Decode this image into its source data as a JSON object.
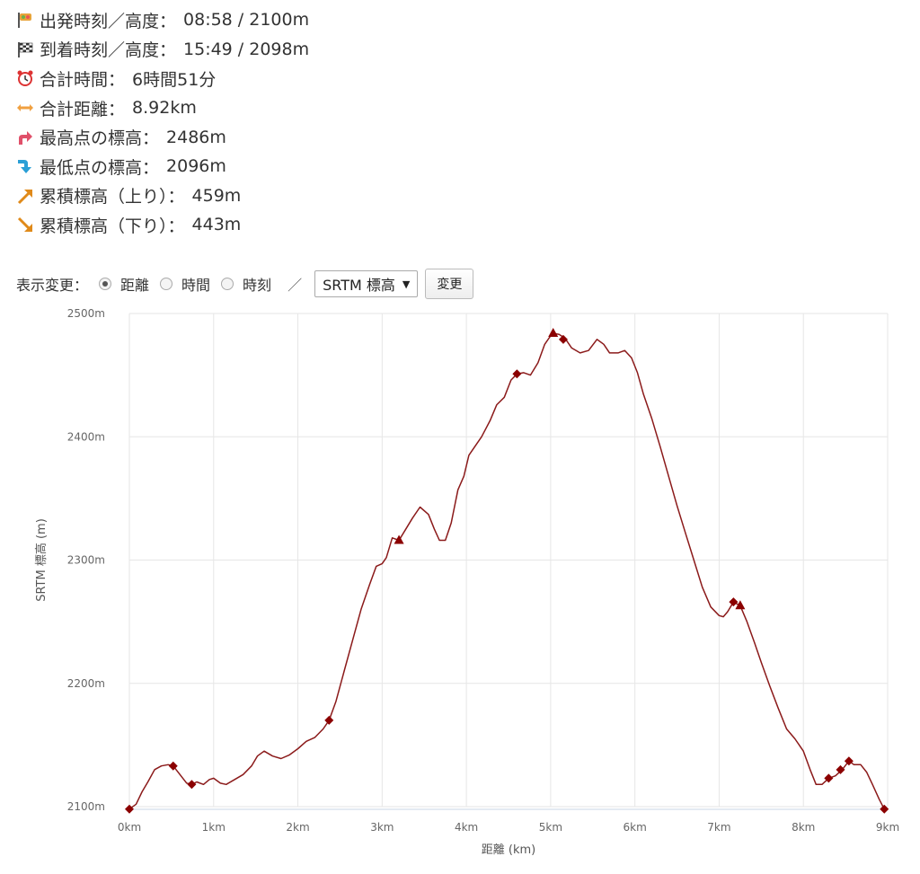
{
  "stats": [
    {
      "icon": "start-flag-icon",
      "label": "出発時刻／高度：",
      "value": "08:58 / 2100m"
    },
    {
      "icon": "finish-flag-icon",
      "label": "到着時刻／高度：",
      "value": "15:49 / 2098m"
    },
    {
      "icon": "alarm-clock-icon",
      "label": "合計時間：",
      "value": "6時間51分"
    },
    {
      "icon": "horizontal-arrow-icon",
      "label": "合計距離：",
      "value": "8.92km"
    },
    {
      "icon": "up-turn-arrow-icon",
      "label": "最高点の標高：",
      "value": "2486m"
    },
    {
      "icon": "down-turn-arrow-icon",
      "label": "最低点の標高：",
      "value": "2096m"
    },
    {
      "icon": "ascent-arrow-icon",
      "label": "累積標高（上り）：",
      "value": "459m"
    },
    {
      "icon": "descent-arrow-icon",
      "label": "累積標高（下り）：",
      "value": "443m"
    }
  ],
  "controls": {
    "label": "表示変更：",
    "options": [
      {
        "label": "距離",
        "checked": true
      },
      {
        "label": "時間",
        "checked": false
      },
      {
        "label": "時刻",
        "checked": false
      }
    ],
    "separator": "／",
    "select_value": "SRTM 標高",
    "button_label": "変更"
  },
  "colors": {
    "line": "#8b1a1a",
    "marker": "#8b0000",
    "grid": "#e6e6e6"
  },
  "chart_data": {
    "type": "line",
    "xlabel": "距離 (km)",
    "ylabel": "SRTM 標高 (m)",
    "xlim": [
      0,
      9
    ],
    "ylim": [
      2100,
      2500
    ],
    "x_ticks": [
      0,
      1,
      2,
      3,
      4,
      5,
      6,
      7,
      8,
      9
    ],
    "x_tick_labels": [
      "0km",
      "1km",
      "2km",
      "3km",
      "4km",
      "5km",
      "6km",
      "7km",
      "8km",
      "9km"
    ],
    "y_ticks": [
      2100,
      2200,
      2300,
      2400,
      2500
    ],
    "y_tick_labels": [
      "2100m",
      "2200m",
      "2300m",
      "2400m",
      "2500m"
    ],
    "grid": true,
    "series": [
      {
        "name": "",
        "points": [
          [
            0.0,
            2098
          ],
          [
            0.08,
            2102
          ],
          [
            0.15,
            2112
          ],
          [
            0.22,
            2120
          ],
          [
            0.3,
            2130
          ],
          [
            0.38,
            2133
          ],
          [
            0.46,
            2134
          ],
          [
            0.52,
            2133
          ],
          [
            0.6,
            2126
          ],
          [
            0.68,
            2119
          ],
          [
            0.74,
            2118
          ],
          [
            0.8,
            2120
          ],
          [
            0.88,
            2118
          ],
          [
            0.95,
            2122
          ],
          [
            1.0,
            2123
          ],
          [
            1.08,
            2119
          ],
          [
            1.15,
            2118
          ],
          [
            1.25,
            2122
          ],
          [
            1.35,
            2126
          ],
          [
            1.45,
            2133
          ],
          [
            1.52,
            2141
          ],
          [
            1.6,
            2145
          ],
          [
            1.7,
            2141
          ],
          [
            1.8,
            2139
          ],
          [
            1.9,
            2142
          ],
          [
            2.0,
            2147
          ],
          [
            2.1,
            2153
          ],
          [
            2.2,
            2156
          ],
          [
            2.3,
            2163
          ],
          [
            2.37,
            2170
          ],
          [
            2.45,
            2185
          ],
          [
            2.55,
            2210
          ],
          [
            2.65,
            2235
          ],
          [
            2.75,
            2260
          ],
          [
            2.85,
            2280
          ],
          [
            2.93,
            2295
          ],
          [
            3.0,
            2297
          ],
          [
            3.05,
            2302
          ],
          [
            3.12,
            2318
          ],
          [
            3.2,
            2316
          ],
          [
            3.28,
            2325
          ],
          [
            3.36,
            2334
          ],
          [
            3.45,
            2343
          ],
          [
            3.55,
            2337
          ],
          [
            3.62,
            2325
          ],
          [
            3.68,
            2316
          ],
          [
            3.75,
            2316
          ],
          [
            3.82,
            2330
          ],
          [
            3.9,
            2357
          ],
          [
            3.97,
            2368
          ],
          [
            4.03,
            2385
          ],
          [
            4.1,
            2392
          ],
          [
            4.18,
            2400
          ],
          [
            4.28,
            2413
          ],
          [
            4.36,
            2426
          ],
          [
            4.45,
            2432
          ],
          [
            4.53,
            2446
          ],
          [
            4.6,
            2451
          ],
          [
            4.68,
            2452
          ],
          [
            4.76,
            2450
          ],
          [
            4.85,
            2460
          ],
          [
            4.93,
            2475
          ],
          [
            5.02,
            2484
          ],
          [
            5.1,
            2483
          ],
          [
            5.17,
            2480
          ],
          [
            5.25,
            2472
          ],
          [
            5.35,
            2468
          ],
          [
            5.45,
            2470
          ],
          [
            5.55,
            2479
          ],
          [
            5.63,
            2475
          ],
          [
            5.7,
            2468
          ],
          [
            5.8,
            2468
          ],
          [
            5.88,
            2470
          ],
          [
            5.96,
            2464
          ],
          [
            6.03,
            2452
          ],
          [
            6.1,
            2435
          ],
          [
            6.2,
            2415
          ],
          [
            6.3,
            2392
          ],
          [
            6.4,
            2368
          ],
          [
            6.5,
            2344
          ],
          [
            6.6,
            2322
          ],
          [
            6.7,
            2300
          ],
          [
            6.8,
            2278
          ],
          [
            6.9,
            2262
          ],
          [
            7.0,
            2255
          ],
          [
            7.05,
            2254
          ],
          [
            7.1,
            2258
          ],
          [
            7.17,
            2266
          ],
          [
            7.25,
            2263
          ],
          [
            7.33,
            2250
          ],
          [
            7.42,
            2233
          ],
          [
            7.5,
            2217
          ],
          [
            7.6,
            2198
          ],
          [
            7.7,
            2180
          ],
          [
            7.8,
            2163
          ],
          [
            7.9,
            2155
          ],
          [
            8.0,
            2145
          ],
          [
            8.08,
            2130
          ],
          [
            8.15,
            2118
          ],
          [
            8.22,
            2118
          ],
          [
            8.3,
            2123
          ],
          [
            8.38,
            2125
          ],
          [
            8.46,
            2130
          ],
          [
            8.54,
            2137
          ],
          [
            8.6,
            2134
          ],
          [
            8.68,
            2134
          ],
          [
            8.75,
            2128
          ],
          [
            8.82,
            2118
          ],
          [
            8.9,
            2106
          ],
          [
            8.96,
            2098
          ]
        ]
      }
    ],
    "markers": [
      {
        "shape": "diamond",
        "x": 0.0,
        "y": 2098
      },
      {
        "shape": "diamond",
        "x": 0.52,
        "y": 2133
      },
      {
        "shape": "diamond",
        "x": 0.74,
        "y": 2118
      },
      {
        "shape": "diamond",
        "x": 2.37,
        "y": 2170
      },
      {
        "shape": "triangle",
        "x": 3.2,
        "y": 2316
      },
      {
        "shape": "diamond",
        "x": 4.6,
        "y": 2451
      },
      {
        "shape": "triangle",
        "x": 5.03,
        "y": 2484
      },
      {
        "shape": "diamond",
        "x": 5.15,
        "y": 2479
      },
      {
        "shape": "diamond",
        "x": 7.17,
        "y": 2266
      },
      {
        "shape": "triangle",
        "x": 7.25,
        "y": 2263
      },
      {
        "shape": "diamond",
        "x": 8.3,
        "y": 2123
      },
      {
        "shape": "diamond",
        "x": 8.44,
        "y": 2130
      },
      {
        "shape": "diamond",
        "x": 8.54,
        "y": 2137
      },
      {
        "shape": "diamond",
        "x": 8.96,
        "y": 2098
      }
    ]
  }
}
